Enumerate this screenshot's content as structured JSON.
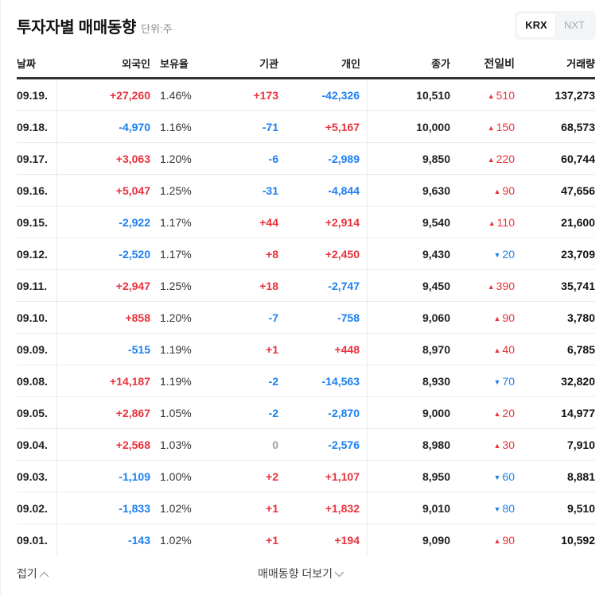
{
  "header": {
    "title": "투자자별 매매동향",
    "unit": "단위:주"
  },
  "market_toggle": {
    "options": [
      "KRX",
      "NXT"
    ],
    "selected": "KRX"
  },
  "table": {
    "columns": {
      "date": "날짜",
      "foreign": "외국인",
      "holding": "보유율",
      "institution": "기관",
      "individual": "개인",
      "close": "종가",
      "change": "전일비",
      "volume": "거래량"
    },
    "rows": [
      {
        "date": "09.19.",
        "foreign": "+27,260",
        "foreign_dir": "up",
        "holding": "1.46%",
        "institution": "+173",
        "institution_dir": "up",
        "individual": "-42,326",
        "individual_dir": "down",
        "close": "10,510",
        "change": "510",
        "change_dir": "up",
        "volume": "137,273"
      },
      {
        "date": "09.18.",
        "foreign": "-4,970",
        "foreign_dir": "down",
        "holding": "1.16%",
        "institution": "-71",
        "institution_dir": "down",
        "individual": "+5,167",
        "individual_dir": "up",
        "close": "10,000",
        "change": "150",
        "change_dir": "up",
        "volume": "68,573"
      },
      {
        "date": "09.17.",
        "foreign": "+3,063",
        "foreign_dir": "up",
        "holding": "1.20%",
        "institution": "-6",
        "institution_dir": "down",
        "individual": "-2,989",
        "individual_dir": "down",
        "close": "9,850",
        "change": "220",
        "change_dir": "up",
        "volume": "60,744"
      },
      {
        "date": "09.16.",
        "foreign": "+5,047",
        "foreign_dir": "up",
        "holding": "1.25%",
        "institution": "-31",
        "institution_dir": "down",
        "individual": "-4,844",
        "individual_dir": "down",
        "close": "9,630",
        "change": "90",
        "change_dir": "up",
        "volume": "47,656"
      },
      {
        "date": "09.15.",
        "foreign": "-2,922",
        "foreign_dir": "down",
        "holding": "1.17%",
        "institution": "+44",
        "institution_dir": "up",
        "individual": "+2,914",
        "individual_dir": "up",
        "close": "9,540",
        "change": "110",
        "change_dir": "up",
        "volume": "21,600"
      },
      {
        "date": "09.12.",
        "foreign": "-2,520",
        "foreign_dir": "down",
        "holding": "1.17%",
        "institution": "+8",
        "institution_dir": "up",
        "individual": "+2,450",
        "individual_dir": "up",
        "close": "9,430",
        "change": "20",
        "change_dir": "down",
        "volume": "23,709"
      },
      {
        "date": "09.11.",
        "foreign": "+2,947",
        "foreign_dir": "up",
        "holding": "1.25%",
        "institution": "+18",
        "institution_dir": "up",
        "individual": "-2,747",
        "individual_dir": "down",
        "close": "9,450",
        "change": "390",
        "change_dir": "up",
        "volume": "35,741"
      },
      {
        "date": "09.10.",
        "foreign": "+858",
        "foreign_dir": "up",
        "holding": "1.20%",
        "institution": "-7",
        "institution_dir": "down",
        "individual": "-758",
        "individual_dir": "down",
        "close": "9,060",
        "change": "90",
        "change_dir": "up",
        "volume": "3,780"
      },
      {
        "date": "09.09.",
        "foreign": "-515",
        "foreign_dir": "down",
        "holding": "1.19%",
        "institution": "+1",
        "institution_dir": "up",
        "individual": "+448",
        "individual_dir": "up",
        "close": "8,970",
        "change": "40",
        "change_dir": "up",
        "volume": "6,785"
      },
      {
        "date": "09.08.",
        "foreign": "+14,187",
        "foreign_dir": "up",
        "holding": "1.19%",
        "institution": "-2",
        "institution_dir": "down",
        "individual": "-14,563",
        "individual_dir": "down",
        "close": "8,930",
        "change": "70",
        "change_dir": "down",
        "volume": "32,820"
      },
      {
        "date": "09.05.",
        "foreign": "+2,867",
        "foreign_dir": "up",
        "holding": "1.05%",
        "institution": "-2",
        "institution_dir": "down",
        "individual": "-2,870",
        "individual_dir": "down",
        "close": "9,000",
        "change": "20",
        "change_dir": "up",
        "volume": "14,977"
      },
      {
        "date": "09.04.",
        "foreign": "+2,568",
        "foreign_dir": "up",
        "holding": "1.03%",
        "institution": "0",
        "institution_dir": "flat",
        "individual": "-2,576",
        "individual_dir": "down",
        "close": "8,980",
        "change": "30",
        "change_dir": "up",
        "volume": "7,910"
      },
      {
        "date": "09.03.",
        "foreign": "-1,109",
        "foreign_dir": "down",
        "holding": "1.00%",
        "institution": "+2",
        "institution_dir": "up",
        "individual": "+1,107",
        "individual_dir": "up",
        "close": "8,950",
        "change": "60",
        "change_dir": "down",
        "volume": "8,881"
      },
      {
        "date": "09.02.",
        "foreign": "-1,833",
        "foreign_dir": "down",
        "holding": "1.02%",
        "institution": "+1",
        "institution_dir": "up",
        "individual": "+1,832",
        "individual_dir": "up",
        "close": "9,010",
        "change": "80",
        "change_dir": "down",
        "volume": "9,510"
      },
      {
        "date": "09.01.",
        "foreign": "-143",
        "foreign_dir": "down",
        "holding": "1.02%",
        "institution": "+1",
        "institution_dir": "up",
        "individual": "+194",
        "individual_dir": "up",
        "close": "9,090",
        "change": "90",
        "change_dir": "up",
        "volume": "10,592"
      }
    ]
  },
  "footer": {
    "fold_label": "접기",
    "more_label": "매매동향 더보기"
  },
  "colors": {
    "up": "#e8323c",
    "down": "#1b7ff0",
    "flat": "#9aa0a8"
  },
  "icons": {
    "up": "triangle-up-icon",
    "down": "triangle-down-icon",
    "fold": "chevron-up-icon",
    "more": "chevron-down-icon"
  }
}
